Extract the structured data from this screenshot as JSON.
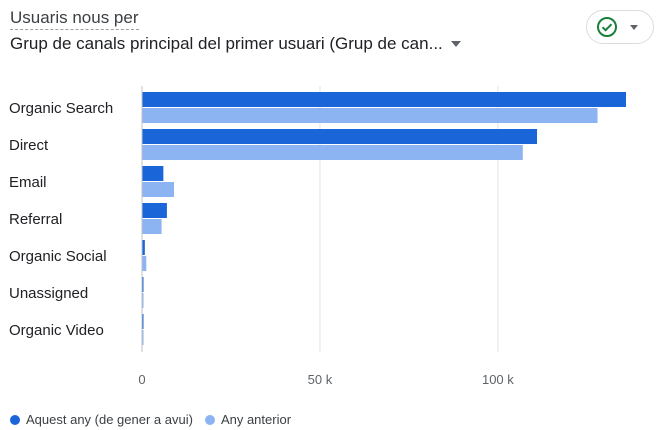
{
  "header": {
    "title": "Usuaris nous per",
    "dimension": "Grup de canals principal del primer usuari (Grup de can..."
  },
  "icons": {
    "status": "check-circle-icon",
    "status_menu": "chevron-down-icon",
    "dimension_menu": "caret-down-icon"
  },
  "colors": {
    "current": "#1a66d9",
    "previous": "#8cb3f2",
    "status_check": "#188038",
    "grid": "#e3e3e3"
  },
  "chart_data": {
    "type": "bar",
    "orientation": "horizontal",
    "categories": [
      "Organic Search",
      "Direct",
      "Email",
      "Referral",
      "Organic Social",
      "Unassigned",
      "Organic Video"
    ],
    "series": [
      {
        "name": "Aquest any (de gener a avui)",
        "values": [
          136000,
          111000,
          6000,
          7000,
          800,
          300,
          200
        ]
      },
      {
        "name": "Any anterior",
        "values": [
          128000,
          107000,
          9000,
          5500,
          1200,
          400,
          300
        ]
      }
    ],
    "x_ticks": [
      "0",
      "50 k",
      "100 k"
    ],
    "x_tick_values": [
      0,
      50000,
      100000
    ],
    "xlim": [
      0,
      136000
    ],
    "grid": true,
    "legend_position": "bottom-left"
  }
}
